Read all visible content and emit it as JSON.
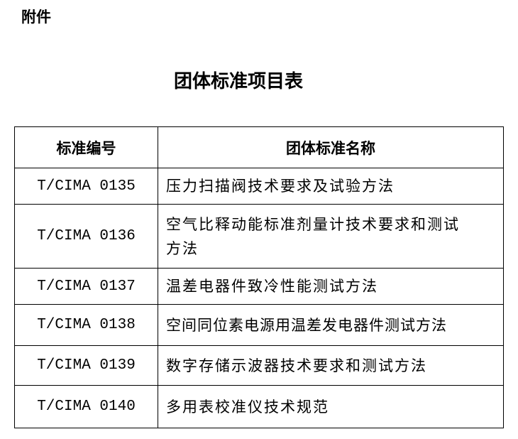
{
  "attachment_label": "附件",
  "title": "团体标准项目表",
  "table": {
    "headers": [
      "标准编号",
      "团体标准名称"
    ],
    "rows": [
      {
        "code": "T/CIMA 0135",
        "name": "压力扫描阀技术要求及试验方法"
      },
      {
        "code": "T/CIMA 0136",
        "name": "空气比释动能标准剂量计技术要求和测试方法"
      },
      {
        "code": "T/CIMA 0137",
        "name": "温差电器件致冷性能测试方法"
      },
      {
        "code": "T/CIMA 0138",
        "name": "空间同位素电源用温差发电器件测试方法"
      },
      {
        "code": "T/CIMA 0139",
        "name": "数字存储示波器技术要求和测试方法"
      },
      {
        "code": "T/CIMA 0140",
        "name": "多用表校准仪技术规范"
      }
    ]
  }
}
